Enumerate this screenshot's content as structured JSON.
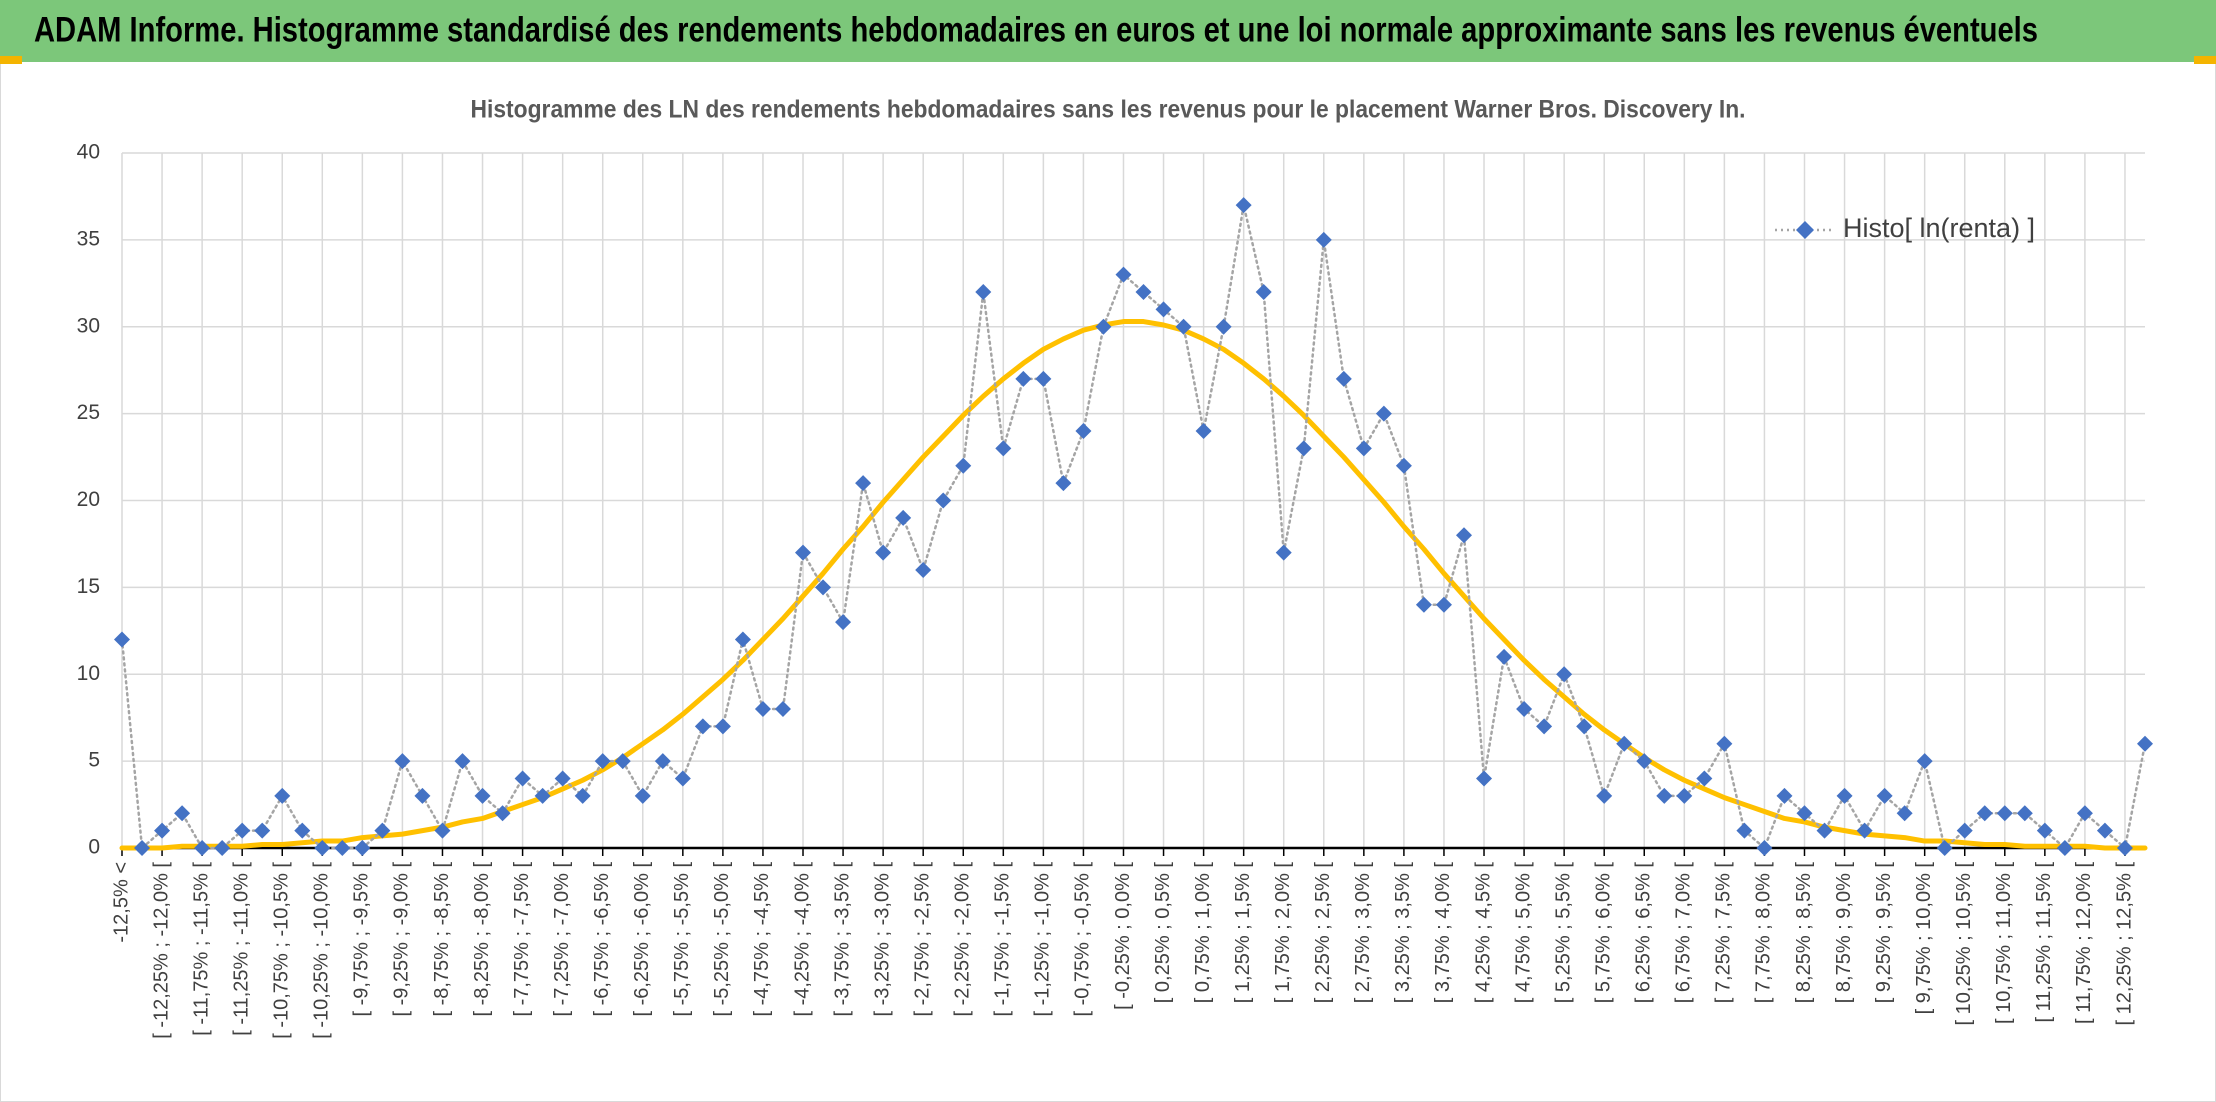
{
  "header": {
    "title": "ADAM Informe. Histogramme standardisé des rendements hebdomadaires en euros et une loi normale approximante sans les revenus éventuels"
  },
  "chart_data": {
    "type": "line",
    "title": "Histogramme des LN des rendements hebdomadaires sans les revenus pour le placement Warner Bros. Discovery In.",
    "categories": [
      "-12,5% <",
      null,
      "[ -12,25% ; -12,0% [",
      null,
      "[ -11,75% ; -11,5% [",
      null,
      "[ -11,25% ; -11,0% [",
      null,
      "[ -10,75% ; -10,5% [",
      null,
      "[ -10,25% ; -10,0% [",
      null,
      "[ -9,75% ; -9,5% [",
      null,
      "[ -9,25% ; -9,0% [",
      null,
      "[ -8,75% ; -8,5% [",
      null,
      "[ -8,25% ; -8,0% [",
      null,
      "[ -7,75% ; -7,5% [",
      null,
      "[ -7,25% ; -7,0% [",
      null,
      "[ -6,75% ; -6,5% [",
      null,
      "[ -6,25% ; -6,0% [",
      null,
      "[ -5,75% ; -5,5% [",
      null,
      "[ -5,25% ; -5,0% [",
      null,
      "[ -4,75% ; -4,5% [",
      null,
      "[ -4,25% ; -4,0% [",
      null,
      "[ -3,75% ; -3,5% [",
      null,
      "[ -3,25% ; -3,0% [",
      null,
      "[ -2,75% ; -2,5% [",
      null,
      "[ -2,25% ; -2,0% [",
      null,
      "[ -1,75% ; -1,5% [",
      null,
      "[ -1,25% ; -1,0% [",
      null,
      "[ -0,75% ; -0,5% [",
      null,
      "[ -0,25% ; 0,0% [",
      null,
      "[ 0,25% ; 0,5% [",
      null,
      "[ 0,75% ; 1,0% [",
      null,
      "[ 1,25% ; 1,5% [",
      null,
      "[ 1,75% ; 2,0% [",
      null,
      "[ 2,25% ; 2,5% [",
      null,
      "[ 2,75% ; 3,0% [",
      null,
      "[ 3,25% ; 3,5% [",
      null,
      "[ 3,75% ; 4,0% [",
      null,
      "[ 4,25% ; 4,5% [",
      null,
      "[ 4,75% ; 5,0% [",
      null,
      "[ 5,25% ; 5,5% [",
      null,
      "[ 5,75% ; 6,0% [",
      null,
      "[ 6,25% ; 6,5% [",
      null,
      "[ 6,75% ; 7,0% [",
      null,
      "[ 7,25% ; 7,5% [",
      null,
      "[ 7,75% ; 8,0% [",
      null,
      "[ 8,25% ; 8,5% [",
      null,
      "[ 8,75% ; 9,0% [",
      null,
      "[ 9,25% ; 9,5% [",
      null,
      "[ 9,75% ; 10,0% [",
      null,
      "[ 10,25% ; 10,5% [",
      null,
      "[ 10,75% ; 11,0% [",
      null,
      "[ 11,25% ; 11,5% [",
      null,
      "[ 11,75% ; 12,0% [",
      null,
      "[ 12,25% ; 12,5% [",
      null
    ],
    "series": [
      {
        "name": "Histo[ ln(renta) ]",
        "color": "#4472c4",
        "line_color": "#a5a5a5",
        "line_style": "dotted",
        "marker": "diamond",
        "values": [
          12,
          0,
          1,
          2,
          0,
          0,
          1,
          1,
          3,
          1,
          0,
          0,
          0,
          1,
          5,
          3,
          1,
          5,
          3,
          2,
          4,
          3,
          4,
          3,
          5,
          5,
          3,
          5,
          4,
          7,
          7,
          12,
          8,
          8,
          17,
          15,
          13,
          21,
          17,
          19,
          16,
          20,
          22,
          32,
          23,
          27,
          27,
          21,
          24,
          30,
          33,
          32,
          31,
          30,
          24,
          30,
          37,
          32,
          17,
          23,
          35,
          27,
          23,
          25,
          22,
          14,
          14,
          18,
          4,
          11,
          8,
          7,
          10,
          7,
          3,
          6,
          5,
          3,
          3,
          4,
          6,
          1,
          0,
          3,
          2,
          1,
          3,
          1,
          3,
          2,
          5,
          0,
          1,
          2,
          2,
          2,
          1,
          0,
          2,
          1,
          0,
          6
        ]
      },
      {
        "color": "#ffc000",
        "line_style": "solid",
        "marker": "none",
        "values": [
          0.0,
          0.0,
          0.0,
          0.1,
          0.1,
          0.1,
          0.1,
          0.2,
          0.2,
          0.3,
          0.4,
          0.4,
          0.6,
          0.7,
          0.8,
          1.0,
          1.2,
          1.5,
          1.7,
          2.1,
          2.5,
          2.9,
          3.4,
          3.9,
          4.5,
          5.2,
          6.0,
          6.8,
          7.7,
          8.7,
          9.7,
          10.8,
          12.0,
          13.2,
          14.5,
          15.8,
          17.2,
          18.5,
          19.9,
          21.2,
          22.5,
          23.7,
          24.9,
          26.0,
          27.0,
          27.9,
          28.7,
          29.3,
          29.8,
          30.1,
          30.3,
          30.3,
          30.1,
          29.8,
          29.3,
          28.7,
          27.9,
          27.0,
          26.0,
          24.9,
          23.7,
          22.5,
          21.2,
          19.9,
          18.5,
          17.2,
          15.8,
          14.5,
          13.2,
          12.0,
          10.8,
          9.7,
          8.7,
          7.7,
          6.8,
          6.0,
          5.2,
          4.5,
          3.9,
          3.4,
          2.9,
          2.5,
          2.1,
          1.7,
          1.5,
          1.2,
          1.0,
          0.8,
          0.7,
          0.6,
          0.4,
          0.4,
          0.3,
          0.2,
          0.2,
          0.1,
          0.1,
          0.1,
          0.1,
          0.0,
          0.0,
          0.0
        ]
      }
    ],
    "ylim": [
      0,
      40
    ],
    "yticks": [
      0,
      5,
      10,
      15,
      20,
      25,
      30,
      35,
      40
    ],
    "grid": true,
    "legend": "upper right"
  }
}
